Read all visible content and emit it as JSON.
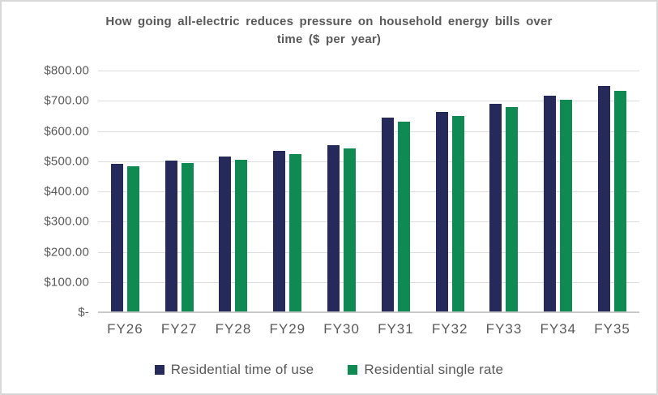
{
  "chart_data": {
    "type": "bar",
    "title": "How going all-electric reduces pressure on household energy bills over time ($ per year)",
    "title_lines": [
      "How going all-electric reduces pressure on household energy bills over",
      "time ($ per year)"
    ],
    "categories": [
      "FY26",
      "FY27",
      "FY28",
      "FY29",
      "FY30",
      "FY31",
      "FY32",
      "FY33",
      "FY34",
      "FY35"
    ],
    "series": [
      {
        "name": "Residential time of use",
        "color": "#262a5a",
        "values": [
          490,
          503,
          516,
          535,
          554,
          643,
          663,
          689,
          716,
          748
        ]
      },
      {
        "name": "Residential single rate",
        "color": "#0e8a52",
        "values": [
          482,
          494,
          505,
          523,
          541,
          631,
          651,
          678,
          704,
          733
        ]
      }
    ],
    "xlabel": "",
    "ylabel": "",
    "ylim": [
      0,
      800
    ],
    "y_ticks": [
      {
        "label": "$800.00",
        "value": 800
      },
      {
        "label": "$700.00",
        "value": 700
      },
      {
        "label": "$600.00",
        "value": 600
      },
      {
        "label": "$500.00",
        "value": 500
      },
      {
        "label": "$400.00",
        "value": 400
      },
      {
        "label": "$300.00",
        "value": 300
      },
      {
        "label": "$200.00",
        "value": 200
      },
      {
        "label": "$100.00",
        "value": 100
      },
      {
        "label": "$-",
        "value": 0
      }
    ],
    "grid": true,
    "legend_position": "bottom",
    "colors": {
      "gridline": "#dcdcdc",
      "axis_text": "#595959",
      "title_text": "#595959"
    }
  }
}
